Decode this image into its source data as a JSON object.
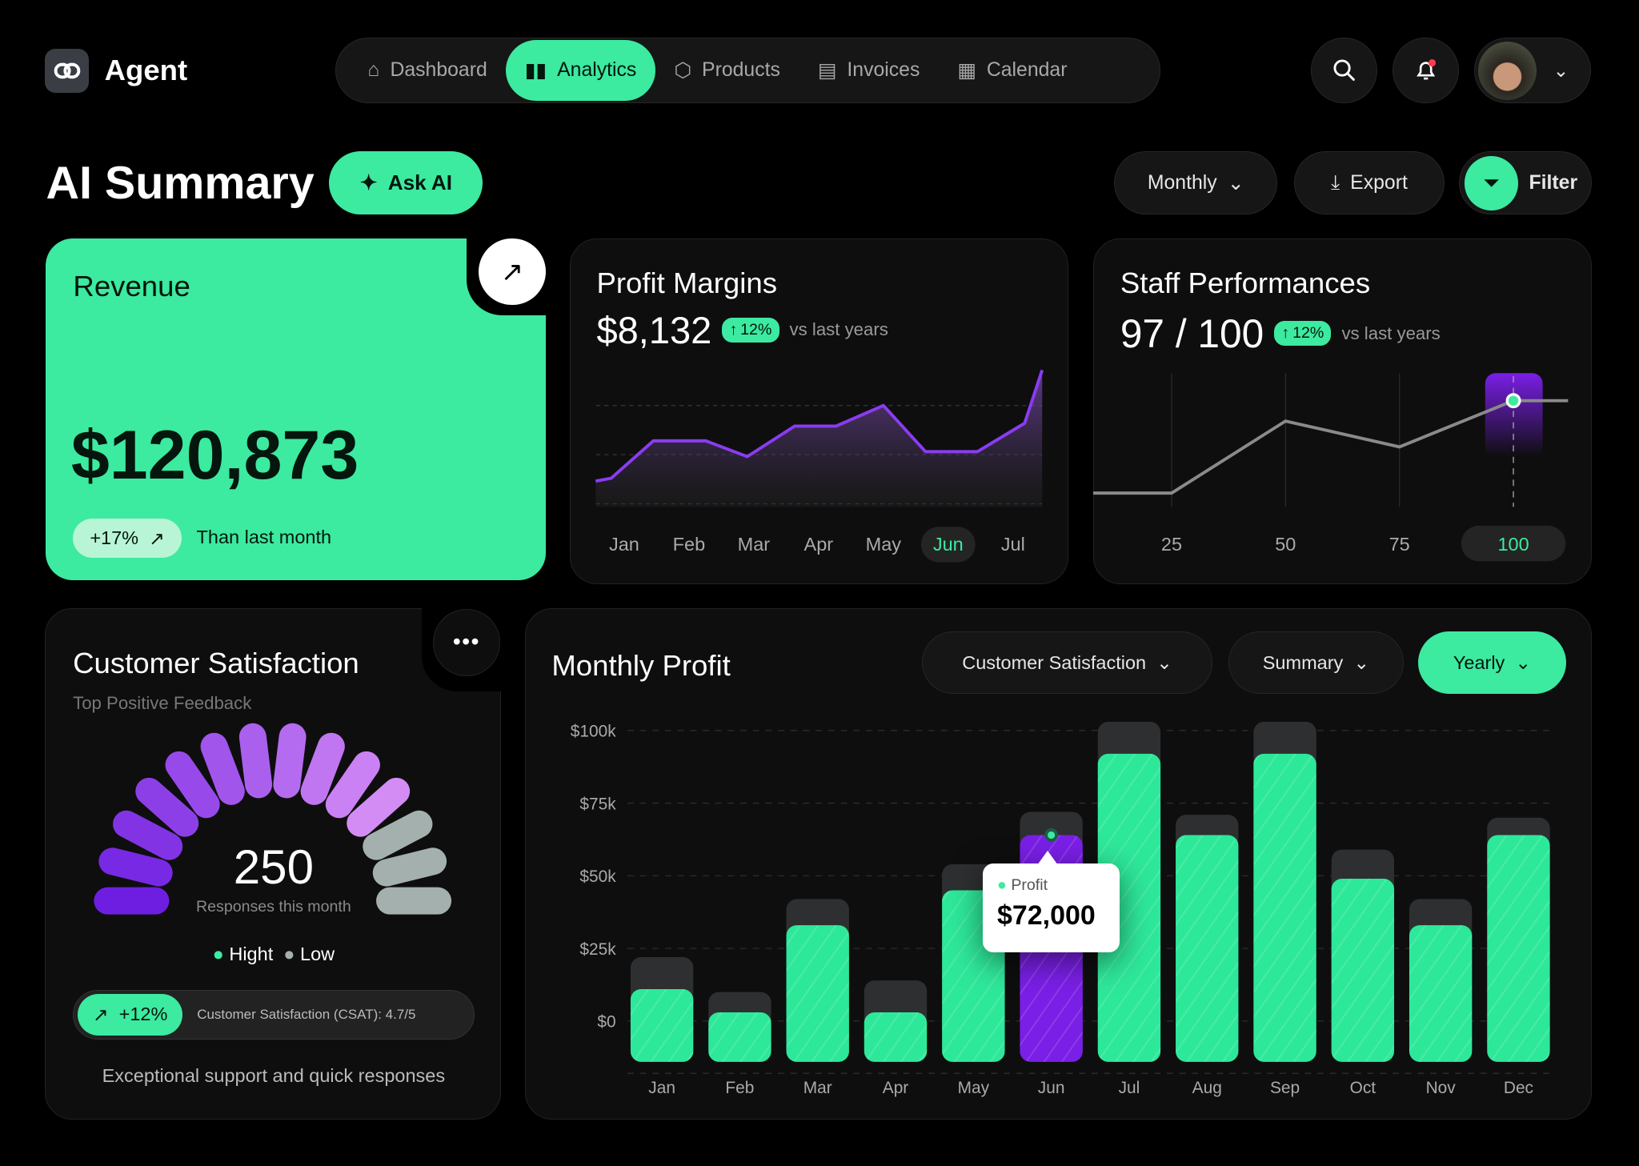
{
  "app": {
    "name": "Agent"
  },
  "nav": {
    "items": [
      {
        "label": "Dashboard",
        "icon": "home-icon",
        "active": false
      },
      {
        "label": "Analytics",
        "icon": "bar-chart-icon",
        "active": true
      },
      {
        "label": "Products",
        "icon": "box-icon",
        "active": false
      },
      {
        "label": "Invoices",
        "icon": "document-icon",
        "active": false
      },
      {
        "label": "Calendar",
        "icon": "calendar-icon",
        "active": false
      }
    ]
  },
  "page": {
    "title": "AI Summary",
    "ask_ai": "Ask AI",
    "period": "Monthly",
    "export": "Export",
    "filter": "Filter"
  },
  "colors": {
    "accent": "#3ceaa0",
    "purple": "#7a1fe6",
    "card": "#0e0e0f",
    "background": "#000000",
    "notification": "#ff3b4e"
  },
  "revenue": {
    "title": "Revenue",
    "value": "$120,873",
    "change": "+17%",
    "note": "Than last month"
  },
  "profit_margins": {
    "title": "Profit Margins",
    "value": "$8,132",
    "change": "12%",
    "note": "vs last years"
  },
  "staff": {
    "title": "Staff Performances",
    "value": "97 / 100",
    "change": "12%",
    "note": "vs last years"
  },
  "csat": {
    "title": "Customer Satisfaction",
    "subtitle": "Top Positive Feedback",
    "value": "250",
    "value_label": "Responses this month",
    "legend": [
      "Hight",
      "Low"
    ],
    "high_segments": 11,
    "total_segments": 14,
    "change": "+12%",
    "score_text": "Customer Satisfaction (CSAT): 4.7/5",
    "footer": "Exceptional support and quick responses"
  },
  "monthly_profit": {
    "title": "Monthly Profit",
    "filters": [
      "Customer Satisfaction",
      "Summary",
      "Yearly"
    ],
    "tooltip": {
      "label": "Profit",
      "value": "$72,000"
    }
  },
  "chart_data": [
    {
      "type": "area",
      "x_categories": [
        "Jan",
        "Feb",
        "Mar",
        "Apr",
        "May",
        "Jun",
        "Jul"
      ],
      "selected": "Jun",
      "x": [
        -0.44,
        -0.2,
        0.45,
        1.26,
        1.9,
        2.63,
        3.27,
        4.0,
        4.65,
        5.45,
        6.18,
        6.45
      ],
      "y": [
        23,
        26,
        64,
        64,
        48,
        79,
        79,
        100,
        53,
        53,
        82,
        136
      ],
      "grid": true
    },
    {
      "type": "line",
      "x_ticks": [
        "25",
        "50",
        "75",
        "100"
      ],
      "selected": "100",
      "x": [
        0,
        25,
        50,
        75,
        100,
        112
      ],
      "y": [
        14,
        14,
        67,
        48,
        82,
        82
      ],
      "grid": true
    },
    {
      "type": "bar",
      "categories": [
        "Jan",
        "Feb",
        "Mar",
        "Apr",
        "May",
        "Jun",
        "Jul",
        "Aug",
        "Sep",
        "Oct",
        "Nov",
        "Dec"
      ],
      "series": [
        {
          "name": "Profit",
          "values": [
            11000,
            3000,
            33000,
            3000,
            45000,
            64000,
            92000,
            64000,
            92000,
            49000,
            33000,
            64000
          ]
        },
        {
          "values": [
            22000,
            10000,
            42000,
            14000,
            54000,
            72000,
            103000,
            71000,
            103000,
            59000,
            42000,
            70000
          ]
        }
      ],
      "highlighted": "Jun",
      "y_ticks": [
        "$100k",
        "$75k",
        "$50k",
        "$25k",
        "$0"
      ],
      "ylim": [
        0,
        100000
      ],
      "grid": true
    }
  ]
}
